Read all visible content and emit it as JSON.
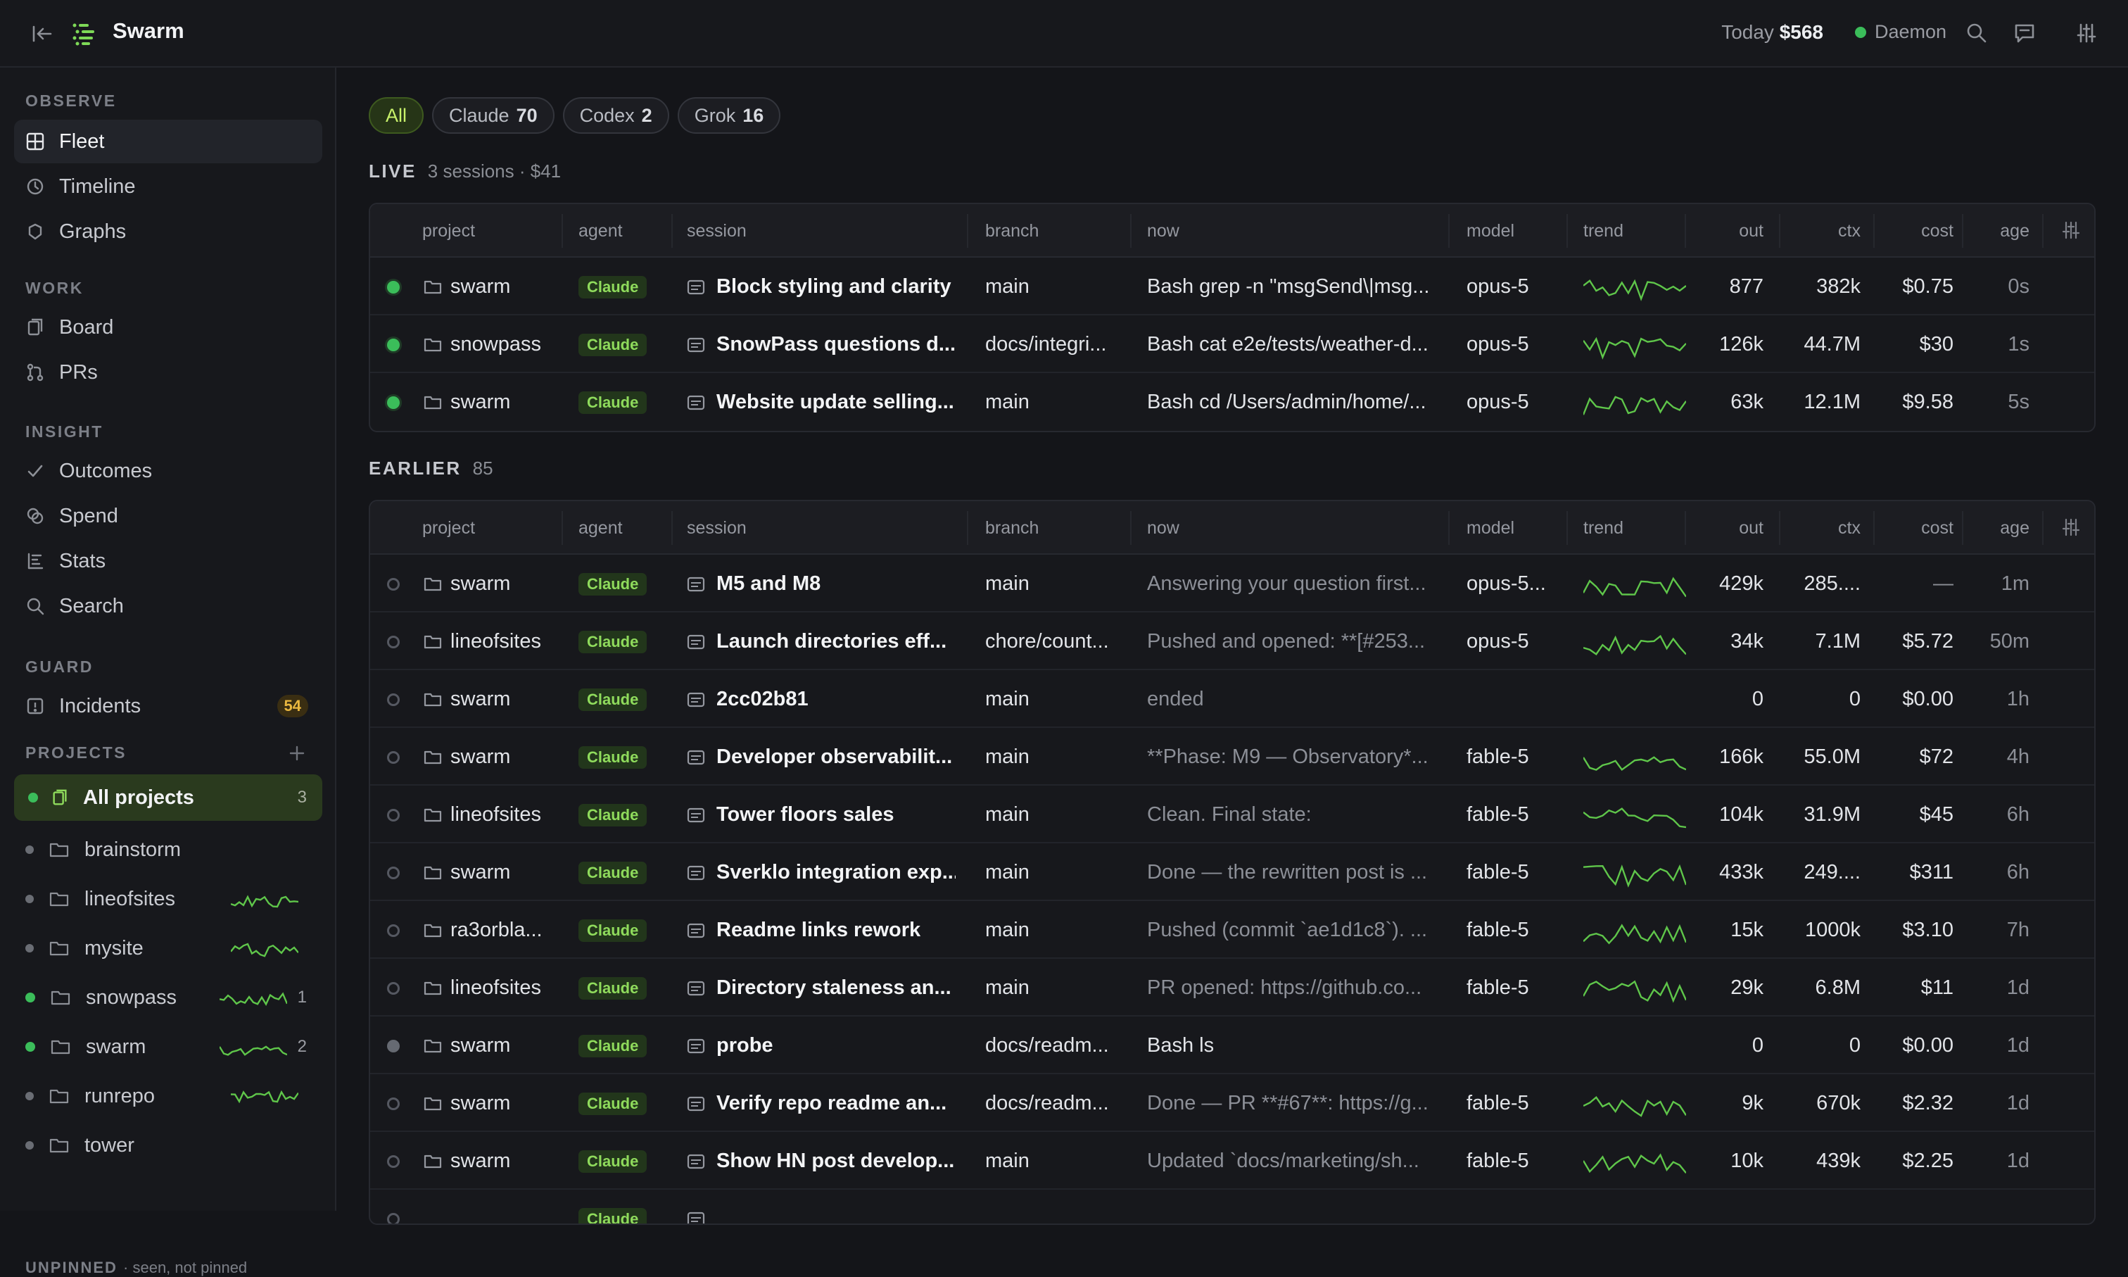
{
  "app": {
    "title": "Swarm",
    "today_label": "Today",
    "today_value": "$568",
    "daemon_label": "Daemon",
    "accent": "#3bbd5a"
  },
  "icons": [
    "collapse-sidebar-icon",
    "swarm-logo-icon",
    "search-icon",
    "chat-icon",
    "sliders-icon"
  ],
  "sidebar": {
    "sections": [
      {
        "title": "OBSERVE",
        "items": [
          {
            "label": "Fleet",
            "icon": "grid-icon",
            "active": true
          },
          {
            "label": "Timeline",
            "icon": "clock-icon"
          },
          {
            "label": "Graphs",
            "icon": "graph-icon"
          }
        ]
      },
      {
        "title": "WORK",
        "items": [
          {
            "label": "Board",
            "icon": "board-icon"
          },
          {
            "label": "PRs",
            "icon": "pr-icon"
          }
        ]
      },
      {
        "title": "INSIGHT",
        "items": [
          {
            "label": "Outcomes",
            "icon": "check-icon"
          },
          {
            "label": "Spend",
            "icon": "coins-icon"
          },
          {
            "label": "Stats",
            "icon": "stats-icon"
          },
          {
            "label": "Search",
            "icon": "search-icon"
          }
        ]
      },
      {
        "title": "GUARD",
        "items": [
          {
            "label": "Incidents",
            "icon": "alert-icon",
            "badge": "54"
          }
        ]
      }
    ],
    "projects_title": "PROJECTS",
    "all_projects": {
      "label": "All projects",
      "count": "3"
    },
    "projects": [
      {
        "name": "brainstorm",
        "live": false,
        "count": ""
      },
      {
        "name": "lineofsites",
        "live": false,
        "count": ""
      },
      {
        "name": "mysite",
        "live": false,
        "count": ""
      },
      {
        "name": "snowpass",
        "live": true,
        "count": "1"
      },
      {
        "name": "swarm",
        "live": true,
        "count": "2"
      },
      {
        "name": "runrepo",
        "live": false,
        "count": ""
      },
      {
        "name": "tower",
        "live": false,
        "count": ""
      }
    ],
    "unpinned_title": "UNPINNED",
    "unpinned_note": "· seen, not pinned"
  },
  "filters": [
    {
      "label": "All",
      "count": "",
      "active": true
    },
    {
      "label": "Claude",
      "count": "70"
    },
    {
      "label": "Codex",
      "count": "2"
    },
    {
      "label": "Grok",
      "count": "16"
    }
  ],
  "columns": [
    "project",
    "agent",
    "session",
    "branch",
    "now",
    "model",
    "trend",
    "out",
    "ctx",
    "cost",
    "age"
  ],
  "live": {
    "title": "LIVE",
    "summary": "3 sessions · $41",
    "rows": [
      {
        "status": "live",
        "project": "swarm",
        "agent": "Claude",
        "session": "Block styling and clarity",
        "branch": "main",
        "now": "Bash grep -n \"msgSend\\|msg...",
        "model": "opus-5",
        "out": "877",
        "ctx": "382k",
        "cost": "$0.75",
        "age": "0s"
      },
      {
        "status": "live",
        "project": "snowpass",
        "agent": "Claude",
        "session": "SnowPass questions d...",
        "branch": "docs/integri...",
        "now": "Bash cat e2e/tests/weather-d...",
        "model": "opus-5",
        "out": "126k",
        "ctx": "44.7M",
        "cost": "$30",
        "age": "1s"
      },
      {
        "status": "live",
        "project": "swarm",
        "agent": "Claude",
        "session": "Website update selling...",
        "branch": "main",
        "now": "Bash cd /Users/admin/home/...",
        "model": "opus-5",
        "out": "63k",
        "ctx": "12.1M",
        "cost": "$9.58",
        "age": "5s"
      }
    ]
  },
  "earlier": {
    "title": "EARLIER",
    "summary": "85",
    "rows": [
      {
        "status": "idle",
        "project": "swarm",
        "agent": "Claude",
        "session": "M5 and M8",
        "branch": "main",
        "now": "Answering your question first...",
        "model": "opus-5...",
        "out": "429k",
        "ctx": "285....",
        "cost": "—",
        "age": "1m"
      },
      {
        "status": "idle",
        "project": "lineofsites",
        "agent": "Claude",
        "session": "Launch directories eff...",
        "branch": "chore/count...",
        "now": "Pushed and opened: **[#253...",
        "model": "opus-5",
        "out": "34k",
        "ctx": "7.1M",
        "cost": "$5.72",
        "age": "50m"
      },
      {
        "status": "idle",
        "project": "swarm",
        "agent": "Claude",
        "session": "2cc02b81",
        "branch": "main",
        "now": "ended",
        "model": "",
        "out": "0",
        "ctx": "0",
        "cost": "$0.00",
        "age": "1h"
      },
      {
        "status": "idle",
        "project": "swarm",
        "agent": "Claude",
        "session": "Developer observabilit...",
        "branch": "main",
        "now": "**Phase: M9 — Observatory*...",
        "model": "fable-5",
        "out": "166k",
        "ctx": "55.0M",
        "cost": "$72",
        "age": "4h"
      },
      {
        "status": "idle",
        "project": "lineofsites",
        "agent": "Claude",
        "session": "Tower floors sales",
        "branch": "main",
        "now": "Clean. Final state:",
        "model": "fable-5",
        "out": "104k",
        "ctx": "31.9M",
        "cost": "$45",
        "age": "6h"
      },
      {
        "status": "idle",
        "project": "swarm",
        "agent": "Claude",
        "session": "Sverklo integration exp...",
        "branch": "main",
        "now": "Done — the rewritten post is ...",
        "model": "fable-5",
        "out": "433k",
        "ctx": "249....",
        "cost": "$311",
        "age": "6h"
      },
      {
        "status": "idle",
        "project": "ra3orbla...",
        "agent": "Claude",
        "session": "Readme links rework",
        "branch": "main",
        "now": "Pushed (commit `ae1d1c8`). ...",
        "model": "fable-5",
        "out": "15k",
        "ctx": "1000k",
        "cost": "$3.10",
        "age": "7h"
      },
      {
        "status": "idle",
        "project": "lineofsites",
        "agent": "Claude",
        "session": "Directory staleness an...",
        "branch": "main",
        "now": "PR opened: https://github.co...",
        "model": "fable-5",
        "out": "29k",
        "ctx": "6.8M",
        "cost": "$11",
        "age": "1d"
      },
      {
        "status": "mid",
        "project": "swarm",
        "agent": "Claude",
        "session": "probe",
        "branch": "docs/readm...",
        "now": "Bash ls",
        "model": "",
        "out": "0",
        "ctx": "0",
        "cost": "$0.00",
        "age": "1d"
      },
      {
        "status": "idle",
        "project": "swarm",
        "agent": "Claude",
        "session": "Verify repo readme an...",
        "branch": "docs/readm...",
        "now": "Done — PR **#67**: https://g...",
        "model": "fable-5",
        "out": "9k",
        "ctx": "670k",
        "cost": "$2.32",
        "age": "1d"
      },
      {
        "status": "idle",
        "project": "swarm",
        "agent": "Claude",
        "session": "Show HN post develop...",
        "branch": "main",
        "now": "Updated `docs/marketing/sh...",
        "model": "fable-5",
        "out": "10k",
        "ctx": "439k",
        "cost": "$2.25",
        "age": "1d"
      },
      {
        "status": "idle",
        "project": "",
        "agent": "Claude",
        "session": "",
        "branch": "",
        "now": "",
        "model": "",
        "out": "",
        "ctx": "",
        "cost": "",
        "age": ""
      }
    ]
  }
}
